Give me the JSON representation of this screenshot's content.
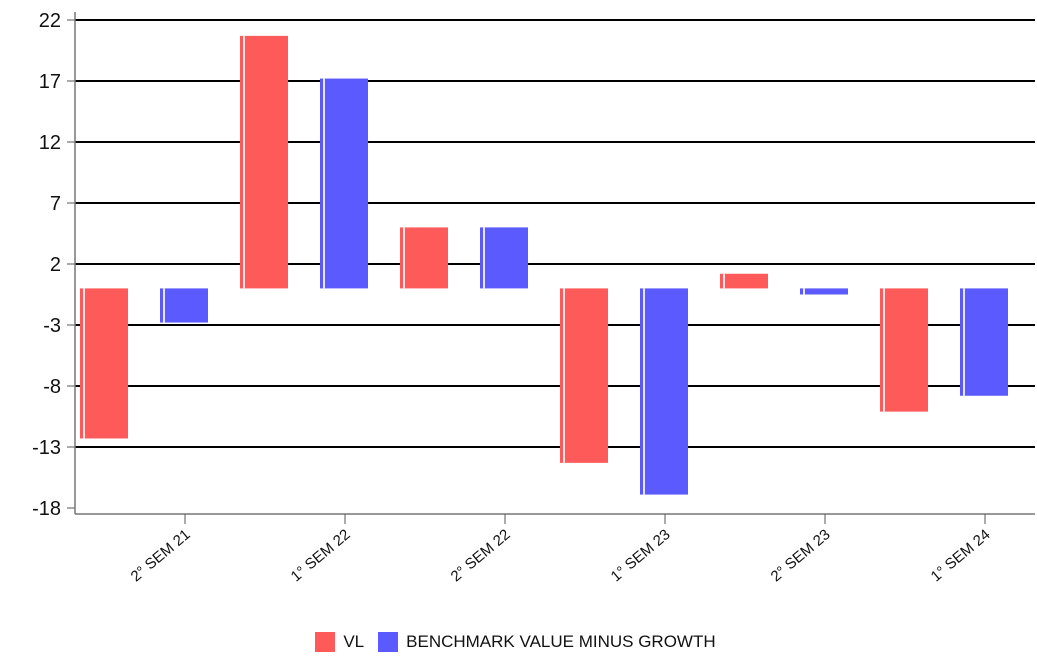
{
  "chart_data": {
    "type": "bar",
    "title": "",
    "xlabel": "",
    "ylabel": "",
    "categories": [
      "2° SEM 21",
      "1° SEM 22",
      "2° SEM 22",
      "1° SEM 23",
      "2° SEM 23",
      "1° SEM 24"
    ],
    "series": [
      {
        "name": "VL",
        "color": "#ff5a5a",
        "values": [
          -12.3,
          20.7,
          5.0,
          -14.3,
          1.2,
          -10.1
        ]
      },
      {
        "name": "BENCHMARK VALUE MINUS GROWTH",
        "color": "#5a5aff",
        "values": [
          -2.8,
          17.2,
          5.0,
          -16.9,
          -0.5,
          -8.8
        ]
      }
    ],
    "ylim": [
      -18,
      22
    ],
    "yticks": [
      22,
      17,
      12,
      7,
      2,
      -3,
      -8,
      -13,
      -18
    ],
    "grid": true,
    "legend_position": "bottom"
  }
}
